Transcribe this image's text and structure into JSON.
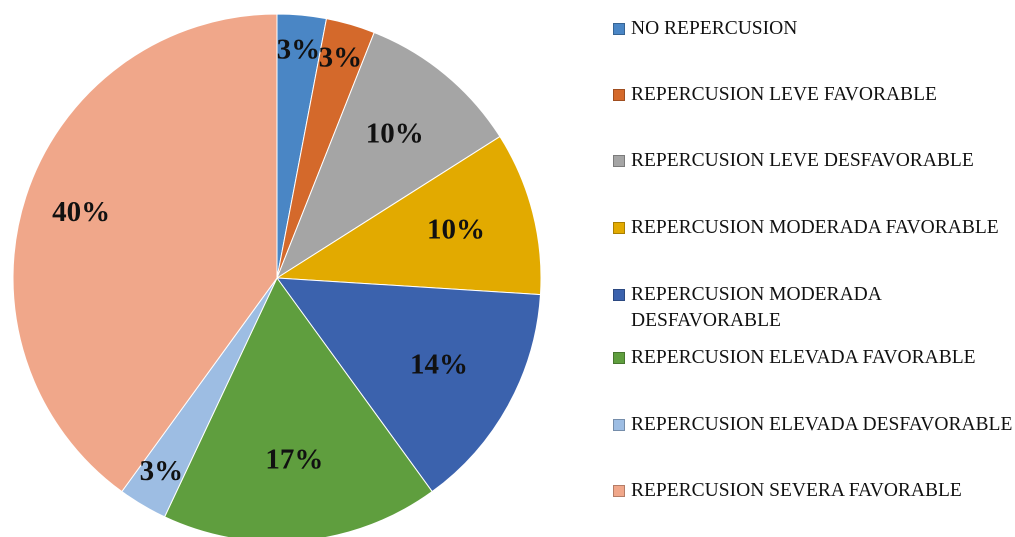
{
  "chart_data": {
    "type": "pie",
    "categories": [
      "NO REPERCUSION",
      "REPERCUSION LEVE FAVORABLE",
      "REPERCUSION LEVE DESFAVORABLE",
      "REPERCUSION MODERADA FAVORABLE",
      "REPERCUSION MODERADA DESFAVORABLE",
      "REPERCUSION ELEVADA FAVORABLE",
      "REPERCUSION ELEVADA DESFAVORABLE",
      "REPERCUSION SEVERA FAVORABLE"
    ],
    "values": [
      3,
      3,
      10,
      10,
      14,
      17,
      3,
      40
    ],
    "value_labels": [
      "3%",
      "3%",
      "10%",
      "10%",
      "14%",
      "17%",
      "3%",
      "40%"
    ],
    "colors": [
      "#4a86c5",
      "#d4692b",
      "#a5a5a5",
      "#e2aa00",
      "#3b62ad",
      "#5f9e3e",
      "#9dbde3",
      "#f0a78a"
    ],
    "legend": "right"
  }
}
